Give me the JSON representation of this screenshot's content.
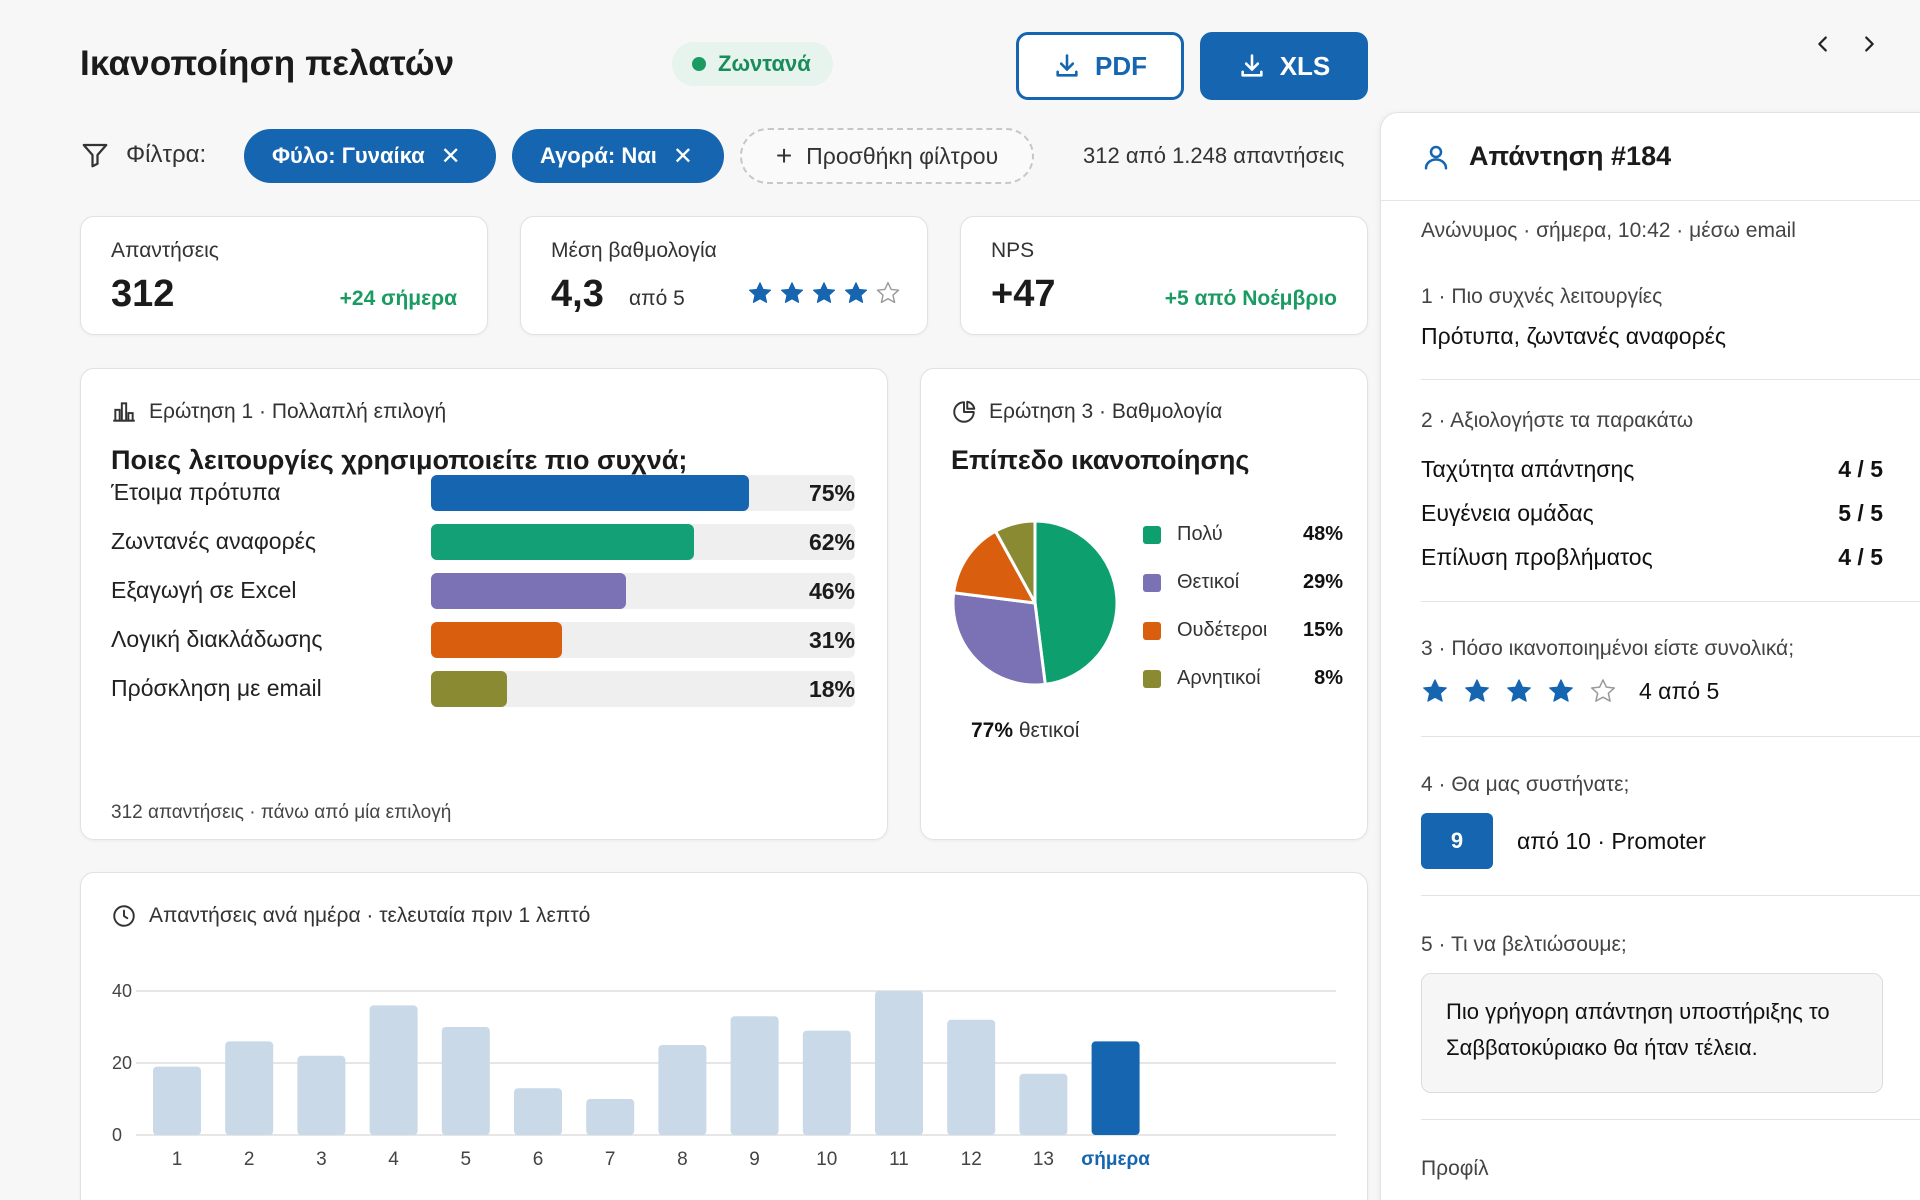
{
  "header": {
    "title": "Ικανοποίηση πελατών",
    "live_label": "Ζωντανά",
    "pdf_label": "PDF",
    "xls_label": "XLS"
  },
  "filters": {
    "label": "Φίλτρα:",
    "chips": [
      "Φύλο: Γυναίκα",
      "Αγορά: Ναι"
    ],
    "add_label": "Προσθήκη φίλτρου",
    "response_count": "312 από 1.248 απαντήσεις"
  },
  "kpis": {
    "responses": {
      "label": "Απαντήσεις",
      "value": "312",
      "delta": "+24 σήμερα"
    },
    "avg_rating": {
      "label": "Μέση βαθμολογία",
      "value": "4,3",
      "suffix": "από 5",
      "stars": 4,
      "max_stars": 5
    },
    "nps": {
      "label": "NPS",
      "value": "+47",
      "delta": "+5 από Νοέμβριο"
    }
  },
  "q1": {
    "meta": "Ερώτηση 1 · Πολλαπλή επιλογή",
    "question": "Ποιες λειτουργίες χρησιμοποιείτε πιο συχνά;",
    "footer": "312 απαντήσεις · πάνω από μία επιλογή",
    "chart_data": {
      "type": "bar",
      "orientation": "horizontal",
      "categories": [
        "Έτοιμα πρότυπα",
        "Ζωντανές αναφορές",
        "Εξαγωγή σε Excel",
        "Λογική διακλάδωσης",
        "Πρόσκληση με email"
      ],
      "values": [
        75,
        62,
        46,
        31,
        18
      ],
      "value_labels": [
        "75%",
        "62%",
        "46%",
        "31%",
        "18%"
      ],
      "colors": [
        "#1565b0",
        "#14a077",
        "#7b71b5",
        "#d95f0e",
        "#8a8a33"
      ],
      "xlim": [
        0,
        100
      ]
    }
  },
  "q3": {
    "meta": "Ερώτηση 3 · Βαθμολογία",
    "title": "Επίπεδο ικανοποίησης",
    "caption_value": "77%",
    "caption_text": "θετικοί",
    "chart_data": {
      "type": "pie",
      "labels": [
        "Πολύ",
        "Θετικοί",
        "Ουδέτεροι",
        "Αρνητικοί"
      ],
      "values": [
        48,
        29,
        15,
        8
      ],
      "value_labels": [
        "48%",
        "29%",
        "15%",
        "8%"
      ],
      "colors": [
        "#0e9f6e",
        "#7b71b5",
        "#d95f0e",
        "#8a8a33"
      ]
    }
  },
  "daily": {
    "meta": "Απαντήσεις ανά ημέρα · τελευταία πριν 1 λεπτό",
    "chart_data": {
      "type": "bar",
      "categories": [
        "1",
        "2",
        "3",
        "4",
        "5",
        "6",
        "7",
        "8",
        "9",
        "10",
        "11",
        "12",
        "13",
        "σήμερα"
      ],
      "values": [
        19,
        26,
        22,
        36,
        30,
        13,
        10,
        25,
        33,
        29,
        40,
        32,
        17,
        26
      ],
      "yticks": [
        "0",
        "20",
        "40"
      ],
      "ylim": [
        0,
        40
      ],
      "bar_color": "#c9d9e8",
      "highlight_color": "#1565b0",
      "highlight_index": 13
    }
  },
  "panel": {
    "title": "Απάντηση #184",
    "meta": "Ανώνυμος · σήμερα, 10:42 · μέσω email",
    "q1_label": "1 · Πιο συχνές λειτουργίες",
    "q1_answer": "Πρότυπα, ζωντανές αναφορές",
    "q2_label": "2 · Αξιολογήστε τα παρακάτω",
    "ratings": [
      {
        "label": "Ταχύτητα απάντησης",
        "value": "4 / 5"
      },
      {
        "label": "Ευγένεια ομάδας",
        "value": "5 / 5"
      },
      {
        "label": "Επίλυση προβλήματος",
        "value": "4 / 5"
      }
    ],
    "q3_label": "3 · Πόσο ικανοποιημένοι είστε συνολικά;",
    "q3_stars": 4,
    "q3_max": 5,
    "q3_text": "4 από 5",
    "q4_label": "4 · Θα μας συστήνατε;",
    "q4_score": "9",
    "q4_text": "από 10 · Promoter",
    "q5_label": "5 · Τι να βελτιώσουμε;",
    "q5_answer": "Πιο γρήγορη απάντηση υποστήριξης το Σαββατοκύριακο θα ήταν τέλεια.",
    "profile_label": "Προφίλ"
  },
  "icons": {
    "download": "download-icon",
    "filter": "filter-icon",
    "bar_chart": "bar-chart-icon",
    "pie_chart": "pie-chart-icon",
    "clock": "clock-icon",
    "user": "user-icon",
    "star_color": "#1565b0"
  }
}
